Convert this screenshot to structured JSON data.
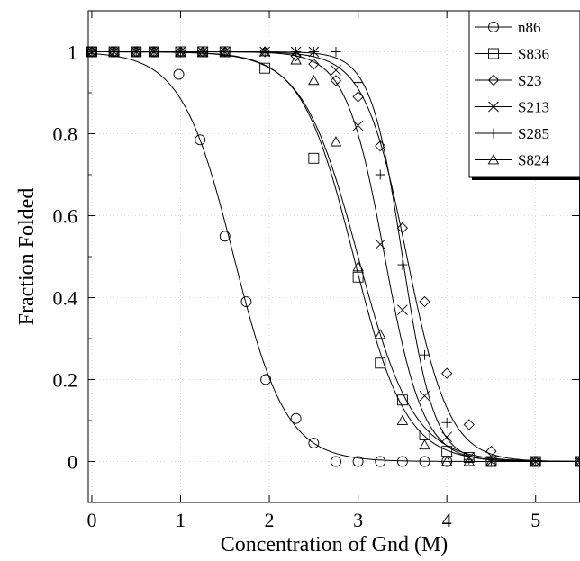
{
  "chart_data": {
    "type": "scatter",
    "title": "",
    "xlabel": "Concentration of Gnd (M)",
    "ylabel": "Fraction Folded",
    "xlim": [
      -0.04,
      5.5
    ],
    "ylim": [
      -0.1,
      1.1
    ],
    "xticks": [
      "0",
      "1",
      "2",
      "3",
      "4",
      "5"
    ],
    "yticks": [
      "0",
      "0.2",
      "0.4",
      "0.6",
      "0.8",
      "1"
    ],
    "legend": "top-right",
    "fit_curves": true,
    "series": [
      {
        "name": "n86",
        "marker": "circle",
        "fit": {
          "midpoint": 1.6,
          "slope": 3.4
        },
        "x": [
          0,
          0.25,
          0.5,
          0.7,
          0.98,
          1.22,
          1.5,
          1.74,
          1.96,
          2.3,
          2.5,
          2.75,
          3.0,
          3.25,
          3.5,
          3.75,
          4.0,
          5.0,
          5.5
        ],
        "y": [
          1,
          1,
          1,
          1,
          0.945,
          0.785,
          0.55,
          0.39,
          0.2,
          0.105,
          0.045,
          0,
          0,
          0,
          0,
          0,
          0,
          0,
          0
        ]
      },
      {
        "name": "S836",
        "marker": "square",
        "fit": {
          "midpoint": 2.95,
          "slope": 3.4
        },
        "x": [
          0,
          0.25,
          0.5,
          0.7,
          1.0,
          1.25,
          1.5,
          1.95,
          2.5,
          3.0,
          3.25,
          3.5,
          3.75,
          4.0,
          4.25,
          4.5,
          5.0,
          5.5
        ],
        "y": [
          1,
          1,
          1,
          1,
          1,
          1,
          1,
          0.96,
          0.74,
          0.45,
          0.24,
          0.15,
          0.065,
          0.025,
          0.01,
          0,
          0,
          0
        ]
      },
      {
        "name": "S23",
        "marker": "diamond",
        "fit": {
          "midpoint": 3.55,
          "slope": 4.2
        },
        "x": [
          0,
          0.25,
          0.5,
          0.7,
          1.0,
          1.25,
          1.5,
          1.95,
          2.3,
          2.5,
          2.75,
          3.0,
          3.25,
          3.5,
          3.75,
          4.0,
          4.25,
          4.5,
          5.0,
          5.5
        ],
        "y": [
          1,
          1,
          1,
          1,
          1,
          1,
          1,
          1,
          0.99,
          0.97,
          0.93,
          0.89,
          0.77,
          0.57,
          0.39,
          0.215,
          0.09,
          0.025,
          0,
          0
        ]
      },
      {
        "name": "S213",
        "marker": "x",
        "fit": {
          "midpoint": 3.3,
          "slope": 4.6
        },
        "x": [
          0,
          0.25,
          0.5,
          0.7,
          1.0,
          1.25,
          1.5,
          1.95,
          2.3,
          2.5,
          2.75,
          3.0,
          3.25,
          3.5,
          3.75,
          4.0,
          4.25,
          4.5,
          5.0,
          5.5
        ],
        "y": [
          1,
          1,
          1,
          1,
          1,
          1,
          1,
          1,
          1,
          1,
          0.955,
          0.82,
          0.53,
          0.37,
          0.16,
          0.06,
          0.01,
          0,
          0,
          0
        ]
      },
      {
        "name": "S285",
        "marker": "plus",
        "fit": {
          "midpoint": 3.5,
          "slope": 5.6
        },
        "x": [
          0,
          0.25,
          0.5,
          0.7,
          1.0,
          1.25,
          1.5,
          1.95,
          2.3,
          2.5,
          2.75,
          3.0,
          3.25,
          3.5,
          3.75,
          4.0,
          4.25,
          4.5,
          5.0,
          5.5
        ],
        "y": [
          1,
          1,
          1,
          1,
          1,
          1,
          1,
          1,
          1,
          1,
          1,
          0.925,
          0.7,
          0.48,
          0.26,
          0.095,
          0.005,
          0,
          0,
          0
        ]
      },
      {
        "name": "S824",
        "marker": "triangle",
        "fit": {
          "midpoint": 3.0,
          "slope": 3.2
        },
        "x": [
          0,
          0.25,
          0.5,
          0.7,
          1.0,
          1.25,
          1.5,
          1.95,
          2.3,
          2.5,
          2.75,
          3.0,
          3.25,
          3.5,
          3.75,
          4.0,
          4.25,
          4.5,
          5.0,
          5.5
        ],
        "y": [
          1,
          1,
          1,
          1,
          1,
          1,
          1,
          1,
          0.98,
          0.93,
          0.78,
          0.475,
          0.31,
          0.1,
          0.04,
          0,
          0,
          0,
          0,
          0
        ]
      }
    ]
  }
}
